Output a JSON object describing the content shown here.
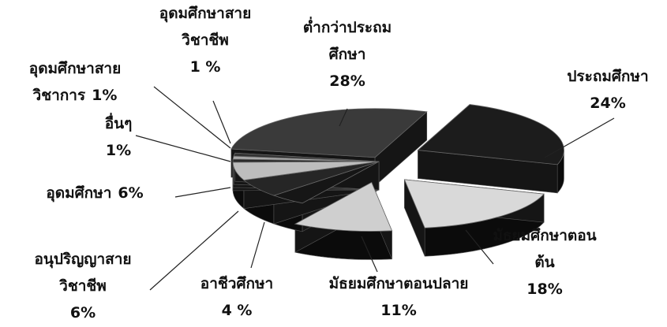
{
  "chart_data": {
    "type": "pie",
    "categories": [
      "ต่ำกว่าประถมศึกษา",
      "ประถมศึกษา",
      "มัธยมศึกษาตอนต้น",
      "มัธยมศึกษาตอนปลาย",
      "อาชีวศึกษา",
      "อนุปริญญาสายวิชาชีพ",
      "อุดมศึกษา",
      "อื่นๆ",
      "อุดมศึกษาสายวิชาการ",
      "อุดมศึกษาสายวิชาชีพ"
    ],
    "values": [
      28,
      24,
      18,
      11,
      4,
      6,
      6,
      1,
      1,
      1
    ],
    "value_labels": [
      "28%",
      "24%",
      "18%",
      "11%",
      "4 %",
      "6%",
      "6%",
      "1%",
      "1%",
      "1 %"
    ],
    "colors": [
      "#3a3a3a",
      "#1c1c1c",
      "#d9d9d9",
      "#cfcfcf",
      "#161616",
      "#262626",
      "#bdbdbd",
      "#2a2a2a",
      "#a8a8a8",
      "#333333"
    ]
  }
}
